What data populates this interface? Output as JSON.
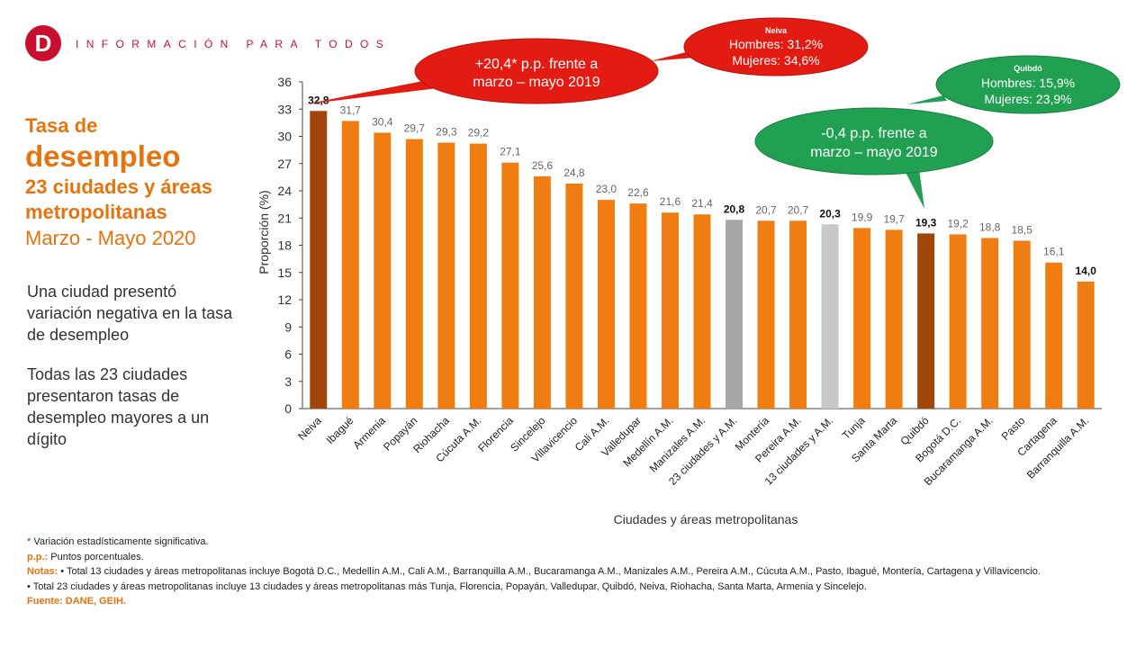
{
  "header": {
    "logo_letter": "D",
    "tagline": "INFORMACIÓN PARA TODOS"
  },
  "left_panel": {
    "title_line1": "Tasa de",
    "title_line2": "desempleo",
    "title_line3": "23 ciudades y áreas metropolitanas",
    "title_line4": "Marzo - Mayo 2020",
    "para1": "Una ciudad presentó variación negativa en la tasa de desempleo",
    "para2": "Todas las 23 ciudades presentaron tasas de desempleo mayores a un dígito"
  },
  "callouts": {
    "red_main": {
      "line1": "+20,4* p.p. frente a",
      "line2": "marzo – mayo 2019"
    },
    "red_small": {
      "title": "Neiva",
      "line1": "Hombres: 31,2%",
      "line2": "Mujeres: 34,6%"
    },
    "green_small": {
      "title": "Quibdó",
      "line1": "Hombres: 15,9%",
      "line2": "Mujeres: 23,9%"
    },
    "green_main": {
      "line1": "-0,4 p.p. frente a",
      "line2": "marzo – mayo 2019"
    }
  },
  "colors": {
    "bar_default": "#f07d12",
    "bar_highlight": "#a0460a",
    "bar_aggregate": "#a6a6a6",
    "bar_aggregate_light": "#c8c8c8",
    "callout_red": "#e31b13",
    "callout_green": "#21a052",
    "title_orange": "#e8720c"
  },
  "chart_data": {
    "type": "bar",
    "xlabel": "Ciudades y áreas metropolitanas",
    "ylabel": "Proporción (%)",
    "ylim": [
      0,
      36
    ],
    "yticks": [
      "0",
      "3",
      "6",
      "9",
      "12",
      "15",
      "18",
      "21",
      "24",
      "27",
      "30",
      "33",
      "36"
    ],
    "grid": false,
    "categories": [
      "Neiva",
      "Ibagué",
      "Armenia",
      "Popayán",
      "Riohacha",
      "Cúcuta A.M.",
      "Florencia",
      "Sincelejo",
      "Villavicencio",
      "Cali A.M.",
      "Valledupar",
      "Medellín A.M.",
      "Manizales A.M.",
      "23 ciudades y A.M.",
      "Montería",
      "Pereira A.M.",
      "13 ciudades y A.M.",
      "Tunja",
      "Santa Marta",
      "Quibdó",
      "Bogotá D.C.",
      "Bucaramanga A.M.",
      "Pasto",
      "Cartagena",
      "Barranquilla A.M."
    ],
    "values": [
      32.8,
      31.7,
      30.4,
      29.7,
      29.3,
      29.2,
      27.1,
      25.6,
      24.8,
      23.0,
      22.6,
      21.6,
      21.4,
      20.8,
      20.7,
      20.7,
      20.3,
      19.9,
      19.7,
      19.3,
      19.2,
      18.8,
      18.5,
      16.1,
      14.0
    ],
    "labels": [
      "32,8",
      "31,7",
      "30,4",
      "29,7",
      "29,3",
      "29,2",
      "27,1",
      "25,6",
      "24,8",
      "23,0",
      "22,6",
      "21,6",
      "21,4",
      "20,8",
      "20,7",
      "20,7",
      "20,3",
      "19,9",
      "19,7",
      "19,3",
      "19,2",
      "18,8",
      "18,5",
      "16,1",
      "14,0"
    ],
    "bold_labels": [
      "Neiva",
      "23 ciudades y A.M.",
      "13 ciudades y A.M.",
      "Quibdó",
      "Barranquilla A.M."
    ],
    "bar_styles": {
      "Neiva": "highlight",
      "Quibdó": "highlight",
      "23 ciudades y A.M.": "aggregate",
      "13 ciudades y A.M.": "aggregate_light"
    }
  },
  "footer": {
    "asterisk": "*",
    "note_star": " Variación estadísticamente significativa.",
    "pp_label": "p.p.:",
    "pp_text": " Puntos porcentuales.",
    "notas_label": "Notas:",
    "nota1": " • Total 13 ciudades y áreas metropolitanas incluye Bogotá D.C., Medellín A.M., Cali A.M., Barranquilla A.M., Bucaramanga A.M., Manizales A.M., Pereira A.M., Cúcuta A.M., Pasto, Ibagué, Montería, Cartagena y Villavicencio.",
    "nota2": "• Total 23 ciudades y áreas metropolitanas incluye 13 ciudades y áreas metropolitanas más Tunja, Florencia, Popayán, Valledupar, Quibdó, Neiva, Riohacha, Santa Marta, Armenia y Sincelejo.",
    "fuente": "Fuente: DANE, GEIH."
  }
}
